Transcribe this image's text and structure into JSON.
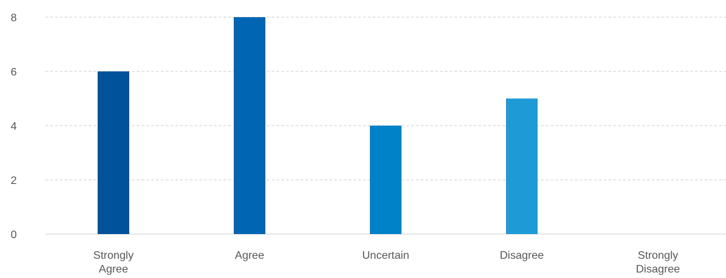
{
  "chart_data": {
    "type": "bar",
    "categories": [
      [
        "Strongly",
        "Agree"
      ],
      [
        "Agree"
      ],
      [
        "Uncertain"
      ],
      [
        "Disagree"
      ],
      [
        "Strongly",
        "Disagree"
      ]
    ],
    "values": [
      6,
      8,
      4,
      5,
      0
    ],
    "bar_colors": [
      "#00539b",
      "#0066b3",
      "#0082c8",
      "#1e9bd7",
      "#1e9bd7"
    ],
    "ylim": [
      0,
      8
    ],
    "yticks": [
      0,
      2,
      4,
      6,
      8
    ],
    "grid": true,
    "grid_color": "#cfcfcf",
    "label_color": "#555555",
    "legend": "none"
  }
}
